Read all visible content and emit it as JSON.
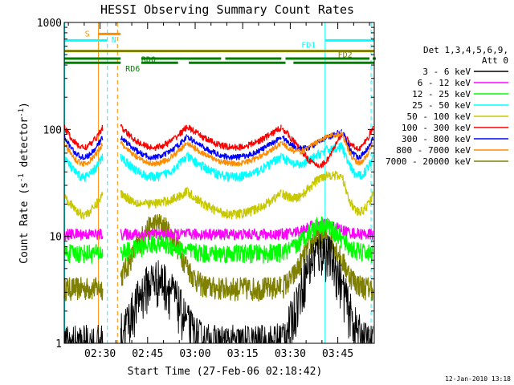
{
  "chart_data": {
    "type": "line",
    "title": "HESSI Observing Summary Count Rates",
    "xlabel": "Start Time (27-Feb-06 02:18:42)",
    "ylabel_main": "Count Rate (s",
    "ylabel_sup1": "-1",
    "ylabel_mid": " detector",
    "ylabel_sup2": "-1",
    "ylabel_end": ")",
    "y_scale": "log",
    "ylim": [
      1,
      1000
    ],
    "xlim_minutes": [
      138.7,
      236.5
    ],
    "x_ticks": [
      {
        "minute": 150,
        "label": "02:30"
      },
      {
        "minute": 165,
        "label": "02:45"
      },
      {
        "minute": 180,
        "label": "03:00"
      },
      {
        "minute": 195,
        "label": "03:15"
      },
      {
        "minute": 210,
        "label": "03:30"
      },
      {
        "minute": 225,
        "label": "03:45"
      }
    ],
    "y_ticks": [
      {
        "value": 1,
        "label": "1"
      },
      {
        "value": 10,
        "label": "10"
      },
      {
        "value": 100,
        "label": "100"
      },
      {
        "value": 1000,
        "label": "1000"
      }
    ],
    "legend_header": [
      "Det 1,3,4,5,6,9,",
      "Att 0"
    ],
    "legend_position": "right",
    "series": [
      {
        "name": "3 - 6 keV",
        "color": "#000000"
      },
      {
        "name": "6 - 12 keV",
        "color": "#ff00ff"
      },
      {
        "name": "12 - 25 keV",
        "color": "#00ff00"
      },
      {
        "name": "25 - 50 keV",
        "color": "#00ffff"
      },
      {
        "name": "50 - 100 keV",
        "color": "#c8c800"
      },
      {
        "name": "100 - 300 keV",
        "color": "#ff0000"
      },
      {
        "name": "300 - 800 keV",
        "color": "#0000ff"
      },
      {
        "name": "800 - 7000 keV",
        "color": "#ff8c00"
      },
      {
        "name": "7000 - 20000 keV",
        "color": "#808000"
      }
    ],
    "flags": [
      {
        "label": "S",
        "color": "#ff8c00",
        "level": 780
      },
      {
        "label": "N",
        "color": "#00ffff",
        "level": 680
      },
      {
        "label": "FD1",
        "color": "#00ffff",
        "level": 680
      },
      {
        "label": "FD2",
        "color": "#808000",
        "level": 540
      },
      {
        "label": "RD0",
        "color": "#008000",
        "level": 460
      },
      {
        "label": "RD6",
        "color": "#008000",
        "level": 420
      }
    ],
    "footer_date": "12-Jan-2010 13:18"
  }
}
